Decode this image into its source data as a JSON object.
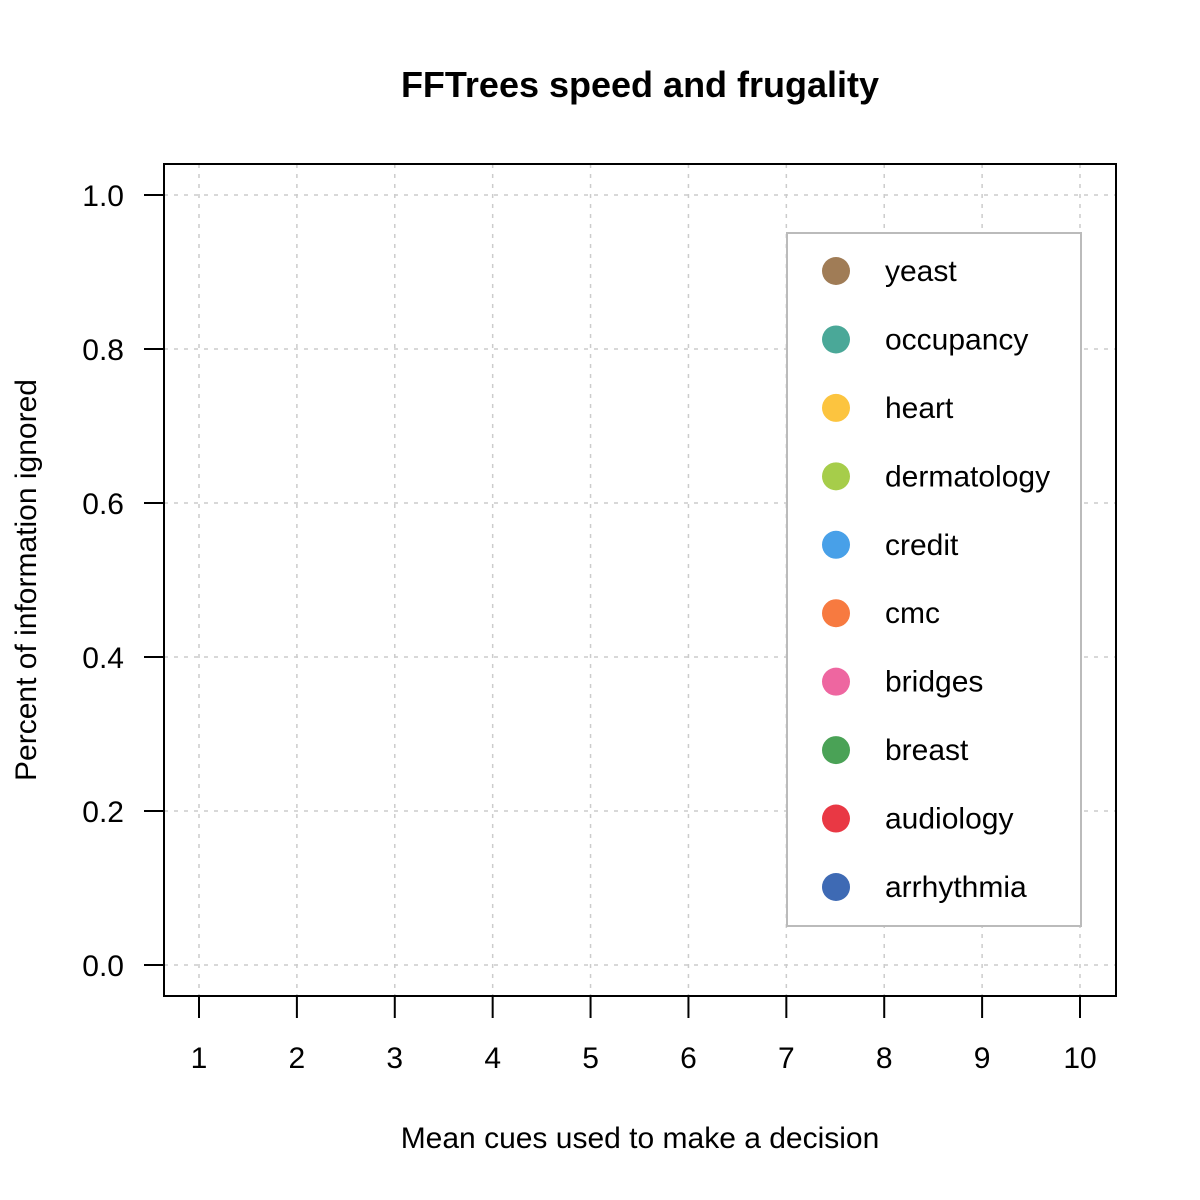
{
  "chart_data": {
    "type": "scatter",
    "title": "FFTrees speed and frugality",
    "xlabel": "Mean cues used to make a decision",
    "ylabel": "Percent of information ignored",
    "xlim": [
      1,
      10
    ],
    "ylim": [
      0,
      1
    ],
    "x_ticks": [
      1,
      2,
      3,
      4,
      5,
      6,
      7,
      8,
      9,
      10
    ],
    "x_tick_labels": [
      "1",
      "2",
      "3",
      "4",
      "5",
      "6",
      "7",
      "8",
      "9",
      "10"
    ],
    "y_ticks": [
      0,
      0.2,
      0.4,
      0.6,
      0.8,
      1.0
    ],
    "y_tick_labels": [
      "0.0",
      "0.2",
      "0.4",
      "0.6",
      "0.8",
      "1.0"
    ],
    "grid": true,
    "legend_position": "right",
    "series": [
      {
        "name": "yeast",
        "color": "#a07c56",
        "points": []
      },
      {
        "name": "occupancy",
        "color": "#4aa898",
        "points": []
      },
      {
        "name": "heart",
        "color": "#fcc43f",
        "points": []
      },
      {
        "name": "dermatology",
        "color": "#a6cd4a",
        "points": []
      },
      {
        "name": "credit",
        "color": "#48a0e8",
        "points": []
      },
      {
        "name": "cmc",
        "color": "#f77a40",
        "points": []
      },
      {
        "name": "bridges",
        "color": "#ee66a0",
        "points": []
      },
      {
        "name": "breast",
        "color": "#4aa256",
        "points": []
      },
      {
        "name": "audiology",
        "color": "#e93844",
        "points": []
      },
      {
        "name": "arrhythmia",
        "color": "#3e6ab4",
        "points": []
      }
    ]
  }
}
